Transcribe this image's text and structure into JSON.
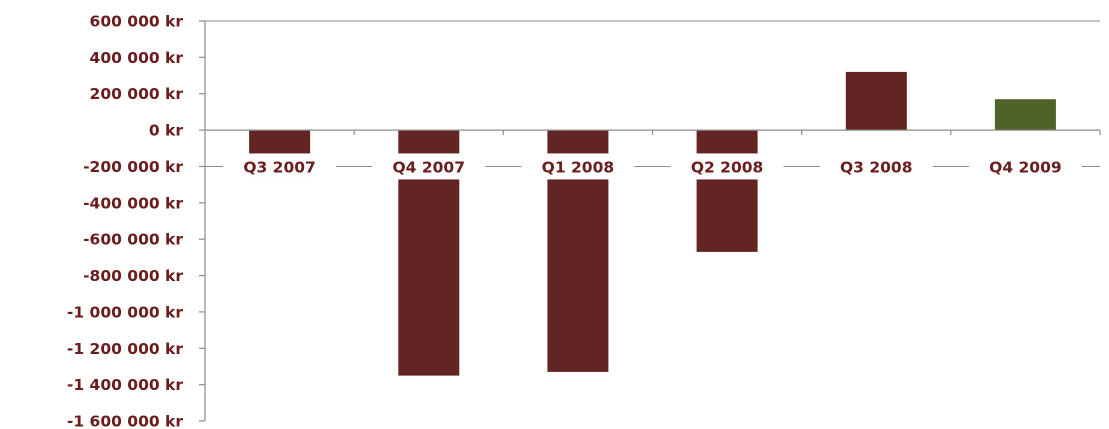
{
  "chart_data": {
    "type": "bar",
    "title": "",
    "xlabel": "",
    "ylabel": "",
    "categories": [
      "Q3 2007",
      "Q4 2007",
      "Q1 2008",
      "Q2 2008",
      "Q3 2008",
      "Q4 2009"
    ],
    "values": [
      -270000,
      -1350000,
      -1330000,
      -670000,
      320000,
      170000
    ],
    "bar_colors": [
      "#632523",
      "#632523",
      "#632523",
      "#632523",
      "#632523",
      "#4f6228"
    ],
    "ylim": [
      -1600000,
      600000
    ],
    "yticks": [
      600000,
      400000,
      200000,
      0,
      -200000,
      -400000,
      -600000,
      -800000,
      -1000000,
      -1200000,
      -1400000,
      -1600000
    ],
    "ytick_labels": [
      "600 000 kr",
      "400 000 kr",
      "200 000 kr",
      "0 kr",
      "-200 000 kr",
      "-400 000 kr",
      "-600 000 kr",
      "-800 000 kr",
      "-1 000 000 kr",
      "-1 200 000 kr",
      "-1 400 000 kr",
      "-1 600 000 kr"
    ],
    "grid": false,
    "legend": "none",
    "label_color": "#6b1c1c"
  }
}
